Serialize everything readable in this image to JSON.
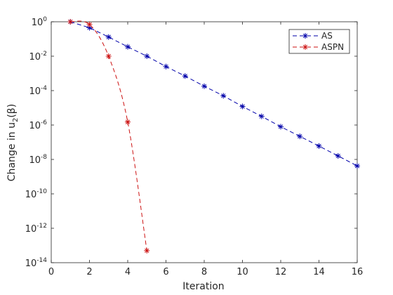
{
  "chart_data": {
    "type": "line",
    "xlabel": "Iteration",
    "ylabel_text": "Change in u",
    "ylabel_sub": "2",
    "ylabel_arg": "(β)",
    "xlim": [
      0,
      16
    ],
    "ylim_log10": [
      -14,
      0
    ],
    "yscale": "log",
    "grid": false,
    "legend_position": "top-right",
    "x_ticks": [
      "0",
      "2",
      "4",
      "6",
      "8",
      "10",
      "12",
      "14",
      "16"
    ],
    "y_tick_base": "10",
    "y_tick_exponents": [
      "0",
      "-2",
      "-4",
      "-6",
      "-8",
      "-10",
      "-12",
      "-14"
    ],
    "series": [
      {
        "name": "AS",
        "color": "#0000aa",
        "x": [
          1,
          2,
          3,
          4,
          5,
          6,
          7,
          8,
          9,
          10,
          11,
          12,
          13,
          14,
          15,
          16
        ],
        "y": [
          1,
          0.45,
          0.13,
          0.035,
          0.01,
          0.0025,
          0.0007,
          0.00018,
          5e-05,
          1.2e-05,
          3.2e-06,
          8e-07,
          2.2e-07,
          6e-08,
          1.6e-08,
          4.2e-09
        ]
      },
      {
        "name": "ASPN",
        "color": "#cc1111",
        "x": [
          1,
          2,
          3,
          4,
          5
        ],
        "y": [
          1,
          0.7,
          0.01,
          1.5e-06,
          5e-14
        ]
      }
    ]
  }
}
